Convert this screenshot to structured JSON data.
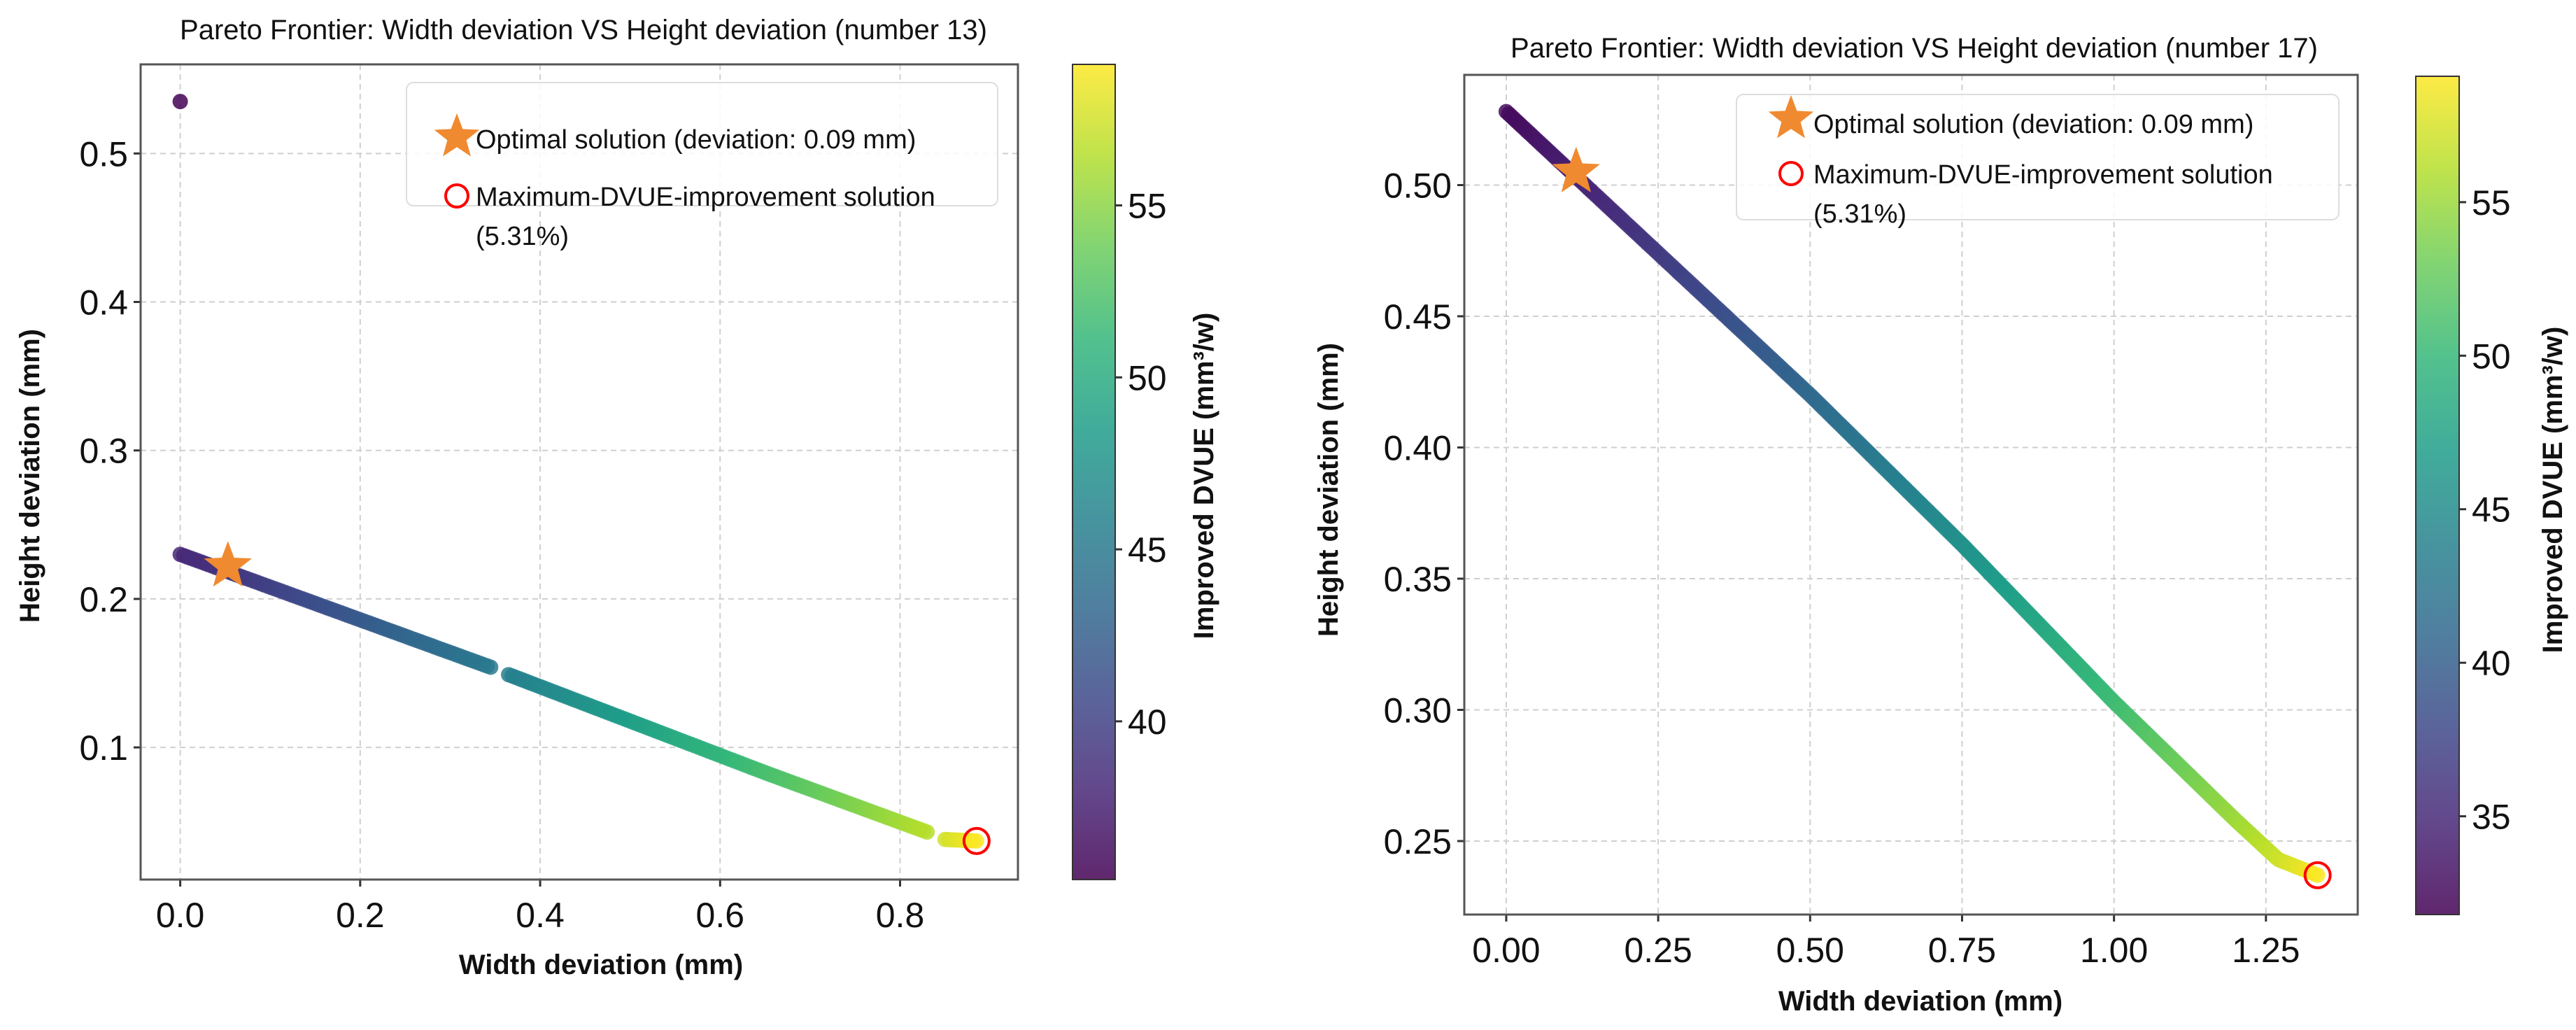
{
  "chart_data": [
    {
      "type": "scatter",
      "title": "Pareto Frontier: Width deviation VS Height deviation (number 13)",
      "xlabel": "Width deviation (mm)",
      "ylabel": "Height deviation (mm)",
      "colorbar_label": "Improved DVUE (mm³/w)",
      "xlim": [
        -0.044,
        0.931
      ],
      "ylim": [
        0.011,
        0.56
      ],
      "clim": [
        35.4,
        59.1
      ],
      "xticks": [
        0.0,
        0.2,
        0.4,
        0.6,
        0.8
      ],
      "xtick_labels": [
        "0.0",
        "0.2",
        "0.4",
        "0.6",
        "0.8"
      ],
      "yticks": [
        0.1,
        0.2,
        0.3,
        0.4,
        0.5
      ],
      "ytick_labels": [
        "0.1",
        "0.2",
        "0.3",
        "0.4",
        "0.5"
      ],
      "cticks": [
        40,
        45,
        50,
        55
      ],
      "ctick_labels": [
        "40",
        "45",
        "50",
        "55"
      ],
      "grid": true,
      "legend_position": "top-right",
      "colormap": "viridis",
      "frontier_segments": [
        {
          "points": [
            [
              0.0,
              0.23,
              38.0
            ],
            [
              0.345,
              0.154,
              45.0
            ]
          ],
          "count": 90
        },
        {
          "points": [
            [
              0.365,
              0.149,
              45.6
            ],
            [
              0.65,
              0.083,
              52.0
            ],
            [
              0.83,
              0.043,
              56.5
            ]
          ],
          "count": 120
        },
        {
          "points": [
            [
              0.85,
              0.038,
              57.5
            ],
            [
              0.885,
              0.037,
              59.0
            ]
          ],
          "count": 10
        }
      ],
      "extra_points": [
        [
          0.0,
          0.535,
          35.5
        ]
      ],
      "optimal_solution": {
        "x": 0.053,
        "y": 0.222,
        "label": "Optimal solution (deviation: 0.09 mm)",
        "color": "#f08a30"
      },
      "max_dvue_solution": {
        "x": 0.885,
        "y": 0.037,
        "label_line1": "Maximum-DVUE-improvement solution",
        "label_line2": "(5.31%)",
        "color": "#ff0000"
      }
    },
    {
      "type": "scatter",
      "title": "Pareto Frontier: Width deviation VS Height deviation (number 17)",
      "xlabel": "Width deviation (mm)",
      "ylabel": "Height deviation (mm)",
      "colorbar_label": "Improved DVUE (mm³/w)",
      "xlim": [
        -0.069,
        1.401
      ],
      "ylim": [
        0.222,
        0.542
      ],
      "clim": [
        31.8,
        59.1
      ],
      "xticks": [
        0.0,
        0.25,
        0.5,
        0.75,
        1.0,
        1.25
      ],
      "xtick_labels": [
        "0.00",
        "0.25",
        "0.50",
        "0.75",
        "1.00",
        "1.25"
      ],
      "yticks": [
        0.25,
        0.3,
        0.35,
        0.4,
        0.45,
        0.5
      ],
      "ytick_labels": [
        "0.25",
        "0.30",
        "0.35",
        "0.40",
        "0.45",
        "0.50"
      ],
      "cticks": [
        35,
        40,
        45,
        50,
        55
      ],
      "ctick_labels": [
        "35",
        "40",
        "45",
        "50",
        "55"
      ],
      "grid": true,
      "legend_position": "top-right",
      "colormap": "viridis",
      "frontier_segments": [
        {
          "points": [
            [
              0.0,
              0.528,
              32.5
            ],
            [
              0.25,
              0.474,
              36.5
            ],
            [
              0.5,
              0.42,
              41.0
            ],
            [
              0.75,
              0.363,
              45.5
            ],
            [
              1.0,
              0.303,
              50.5
            ],
            [
              1.2,
              0.258,
              55.0
            ],
            [
              1.27,
              0.243,
              57.0
            ],
            [
              1.335,
              0.237,
              59.0
            ]
          ],
          "count": 320
        }
      ],
      "extra_points": [],
      "optimal_solution": {
        "x": 0.115,
        "y": 0.505,
        "label": "Optimal solution (deviation: 0.09 mm)",
        "color": "#f08a30"
      },
      "max_dvue_solution": {
        "x": 1.335,
        "y": 0.237,
        "label_line1": "Maximum-DVUE-improvement solution",
        "label_line2": "(5.31%)",
        "color": "#ff0000"
      }
    }
  ]
}
